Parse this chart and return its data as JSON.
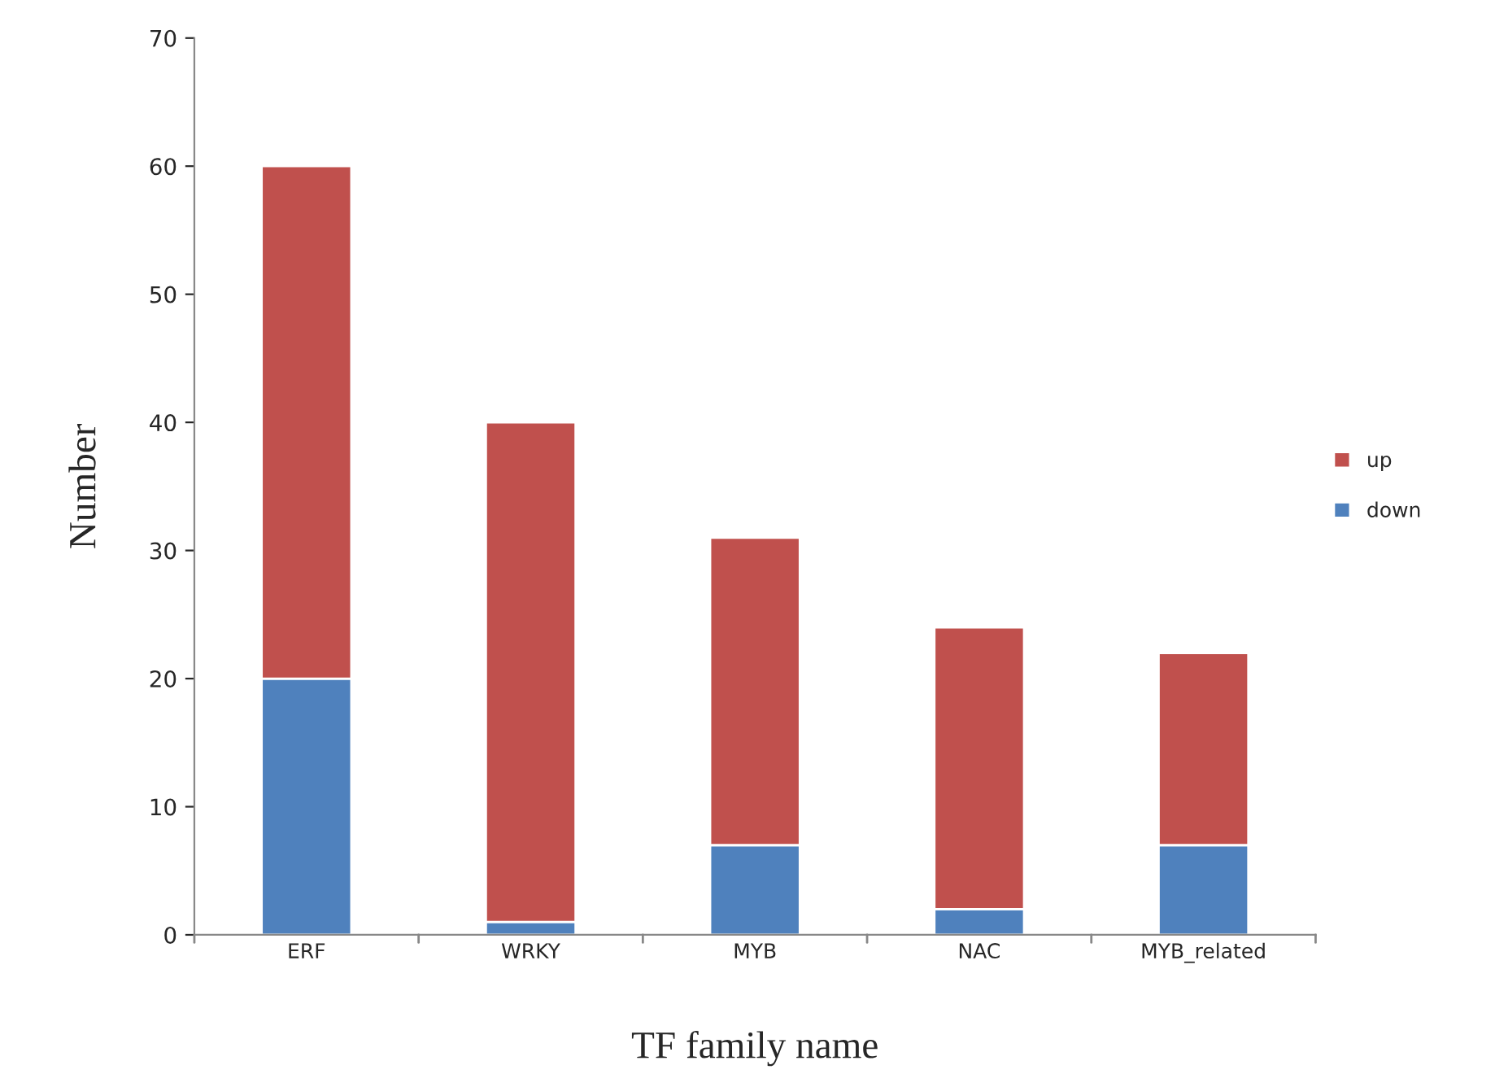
{
  "chart_data": {
    "type": "bar",
    "stacked": true,
    "xlabel": "TF family name",
    "ylabel": "Number",
    "categories": [
      "ERF",
      "WRKY",
      "MYB",
      "NAC",
      "MYB_related"
    ],
    "series": [
      {
        "name": "down",
        "color": "#4f81bd",
        "values": [
          20,
          1,
          7,
          2,
          7
        ]
      },
      {
        "name": "up",
        "color": "#c0504d",
        "values": [
          40,
          39,
          24,
          22,
          15
        ]
      }
    ],
    "ylim": [
      0,
      70
    ],
    "yticks": [
      0,
      10,
      20,
      30,
      40,
      50,
      60,
      70
    ],
    "grid": false,
    "legend": "right"
  }
}
